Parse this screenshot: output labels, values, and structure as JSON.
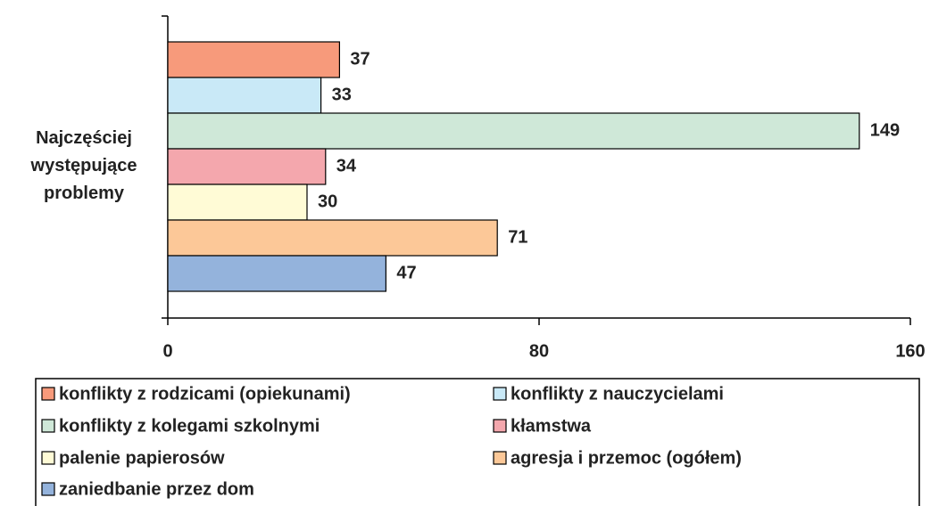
{
  "chart_data": {
    "type": "bar",
    "orientation": "horizontal",
    "categories": [
      "Najczęściej występujące problemy"
    ],
    "series": [
      {
        "name": "konflikty z rodzicami (opiekunami)",
        "color": "#f79a7b",
        "values": [
          37
        ]
      },
      {
        "name": "konflikty z nauczycielami",
        "color": "#c9e9f7",
        "values": [
          33
        ]
      },
      {
        "name": "konflikty z kolegami szkolnymi",
        "color": "#cfe8d8",
        "values": [
          149
        ]
      },
      {
        "name": "kłamstwa",
        "color": "#f4a7ad",
        "values": [
          34
        ]
      },
      {
        "name": "palenie papierosów",
        "color": "#fffbd6",
        "values": [
          30
        ]
      },
      {
        "name": "agresja i przemoc (ogółem)",
        "color": "#fcc898",
        "values": [
          71
        ]
      },
      {
        "name": "zaniedbanie przez dom",
        "color": "#94b3dc",
        "values": [
          47
        ]
      }
    ],
    "xlim": [
      0,
      160
    ],
    "xticks": [
      0,
      80,
      160
    ],
    "legend": "bottom"
  }
}
